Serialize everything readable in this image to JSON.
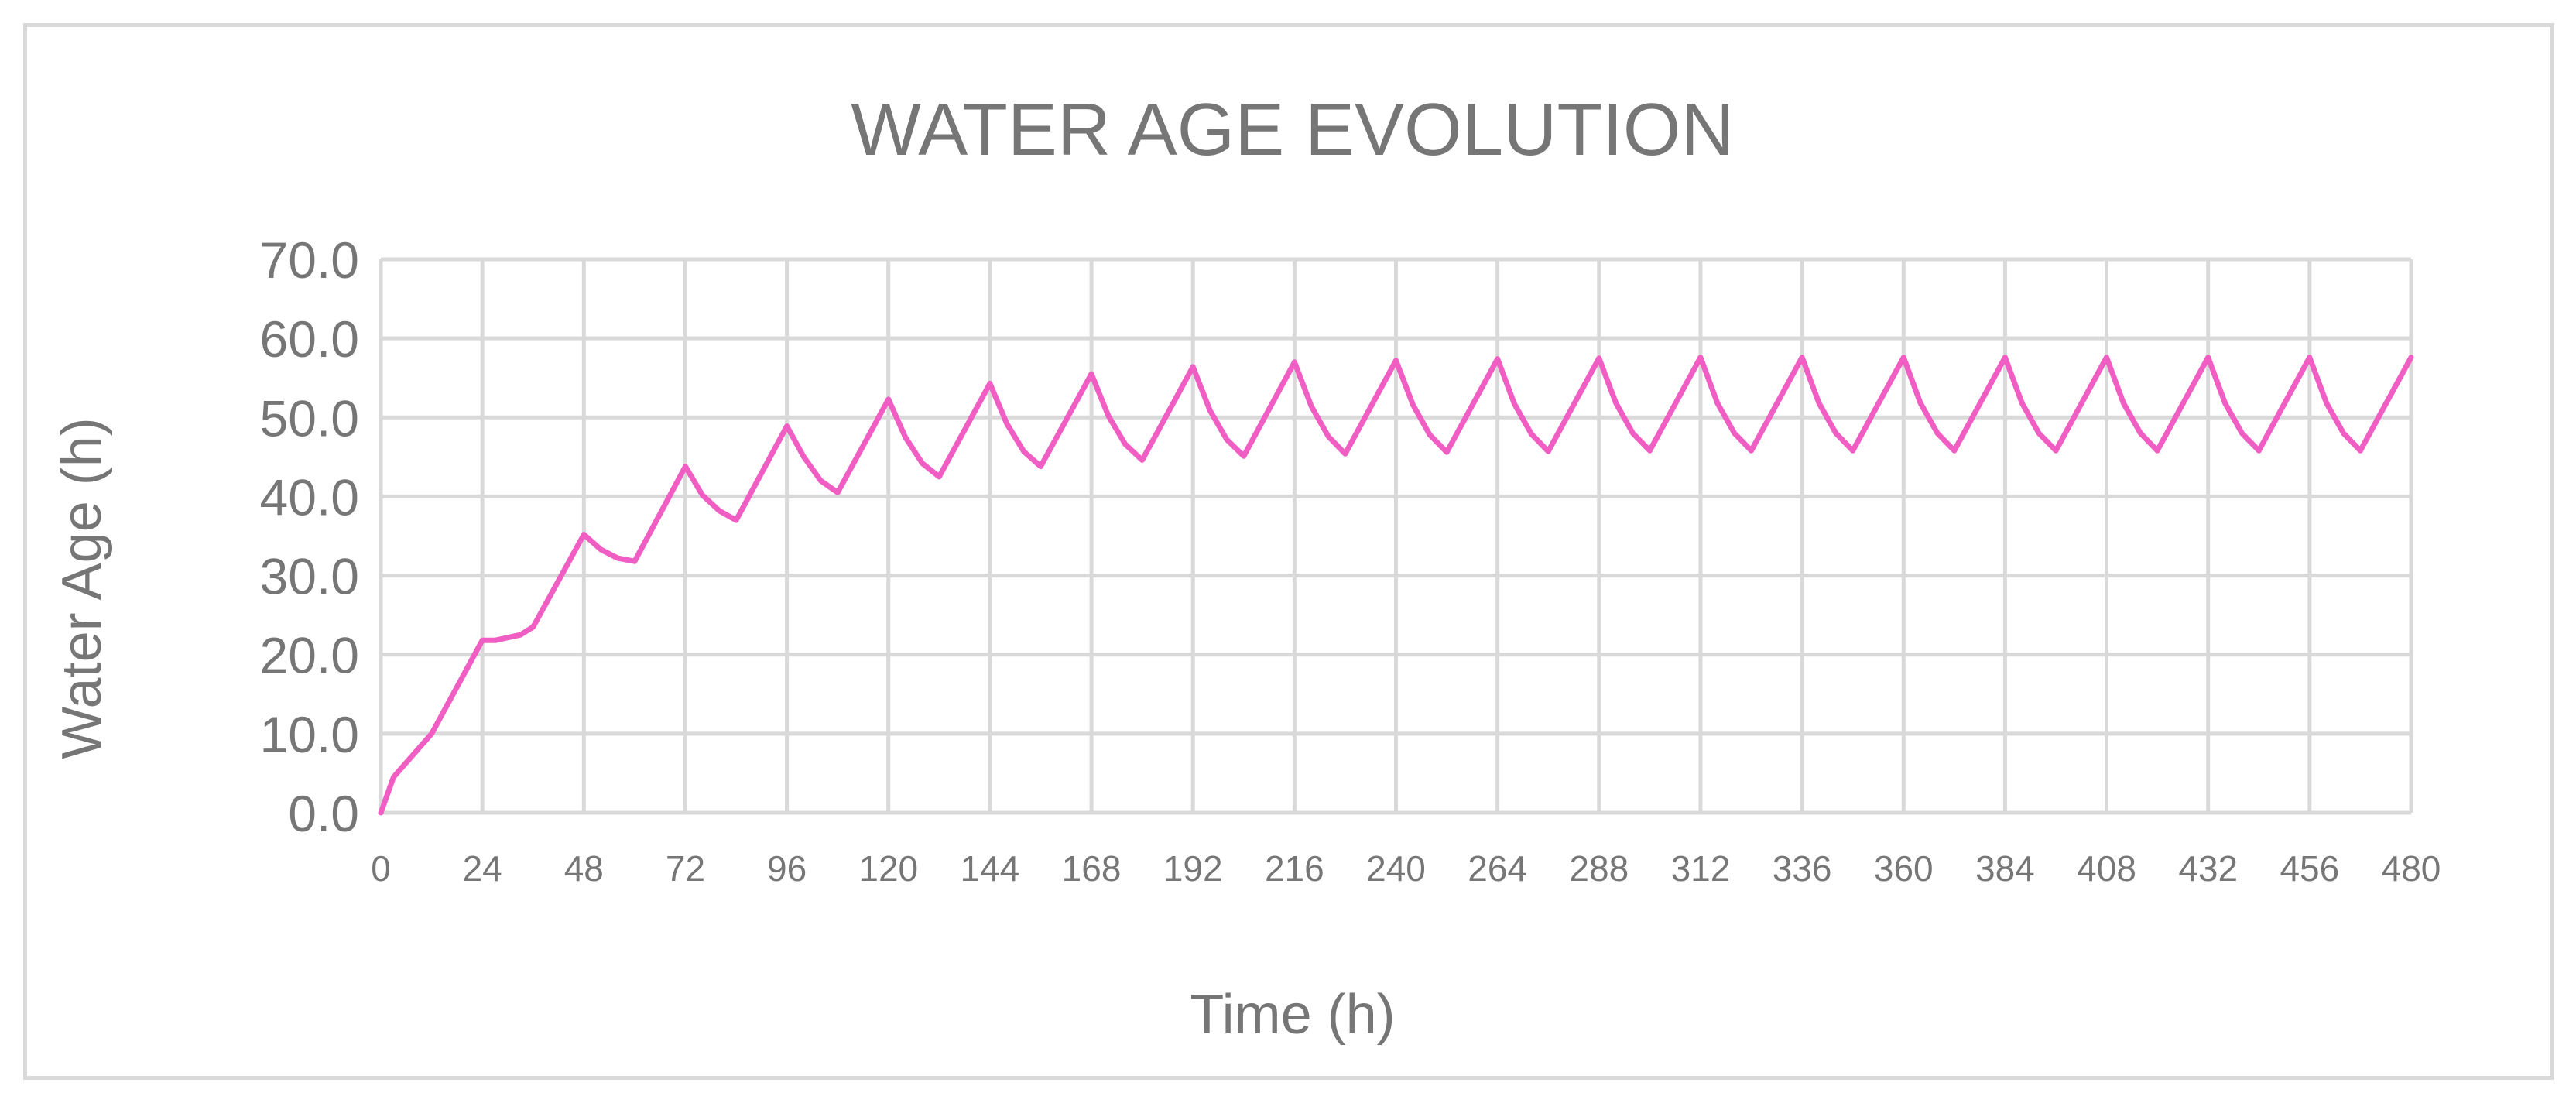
{
  "colors": {
    "series": "#f05ec4",
    "grid": "#d9d9d9",
    "text": "#767676"
  },
  "chart_data": {
    "type": "line",
    "title": "WATER AGE EVOLUTION",
    "xlabel": "Time (h)",
    "ylabel": "Water Age (h)",
    "xlim": [
      0,
      480
    ],
    "ylim": [
      0,
      70
    ],
    "grid": true,
    "legend": "none",
    "x_ticks": [
      0,
      24,
      48,
      72,
      96,
      120,
      144,
      168,
      192,
      216,
      240,
      264,
      288,
      312,
      336,
      360,
      384,
      408,
      432,
      456,
      480
    ],
    "y_ticks": [
      "0.0",
      "10.0",
      "20.0",
      "30.0",
      "40.0",
      "50.0",
      "60.0",
      "70.0"
    ],
    "series": [
      {
        "name": "Water Age",
        "x": [
          0,
          3,
          12,
          24,
          27,
          33,
          36,
          48,
          52,
          56,
          60,
          72,
          76,
          80,
          84,
          96,
          100,
          104,
          108,
          120,
          124,
          128,
          132,
          144,
          148,
          152,
          156,
          168,
          172,
          176,
          180,
          192,
          196,
          200,
          204,
          216,
          220,
          224,
          228,
          240,
          244,
          248,
          252,
          264,
          268,
          272,
          276,
          288,
          292,
          296,
          300,
          312,
          316,
          320,
          324,
          336,
          340,
          344,
          348,
          360,
          364,
          368,
          372,
          384,
          388,
          392,
          396,
          408,
          412,
          416,
          420,
          432,
          436,
          440,
          444,
          456,
          460,
          464,
          468,
          480
        ],
        "y": [
          0,
          4.5,
          10,
          21.8,
          21.8,
          22.5,
          23.5,
          35.2,
          33.3,
          32.2,
          31.8,
          43.8,
          40.2,
          38.2,
          37.0,
          48.9,
          45.0,
          42.0,
          40.5,
          52.3,
          47.5,
          44.2,
          42.5,
          54.3,
          49.2,
          45.7,
          43.8,
          55.5,
          50.2,
          46.6,
          44.6,
          56.4,
          50.9,
          47.2,
          45.1,
          57.0,
          51.4,
          47.6,
          45.4,
          57.2,
          51.6,
          47.8,
          45.6,
          57.4,
          51.7,
          47.9,
          45.7,
          57.5,
          51.8,
          48.0,
          45.8,
          57.6,
          51.8,
          48.0,
          45.8,
          57.6,
          51.8,
          48.0,
          45.8,
          57.6,
          51.8,
          48.0,
          45.8,
          57.6,
          51.8,
          48.0,
          45.8,
          57.6,
          51.8,
          48.0,
          45.8,
          57.6,
          51.8,
          48.0,
          45.8,
          57.6,
          51.8,
          48.0,
          45.8,
          57.6
        ]
      }
    ]
  }
}
